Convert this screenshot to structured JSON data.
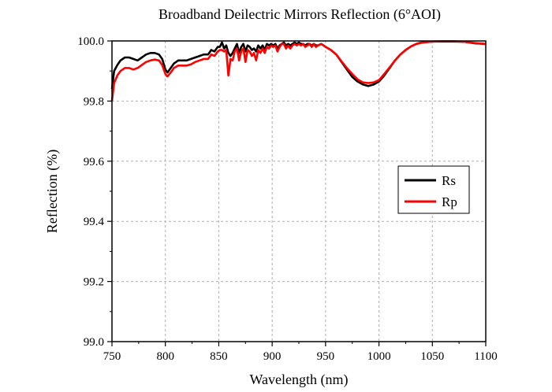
{
  "chart_data": {
    "type": "line",
    "title": "Broadband Deilectric Mirrors Reflection (6°AOI)",
    "xlabel": "Wavelength (nm)",
    "ylabel": "Reflection (%)",
    "xlim": [
      750,
      1100
    ],
    "ylim": [
      99.0,
      100.0
    ],
    "xticks": [
      750,
      800,
      850,
      900,
      950,
      1000,
      1050,
      1100
    ],
    "xtick_labels": [
      "750",
      "800",
      "850",
      "900",
      "950",
      "1000",
      "1050",
      "1100"
    ],
    "yticks": [
      99.0,
      99.2,
      99.4,
      99.6,
      99.8,
      100.0
    ],
    "ytick_labels": [
      "99.0",
      "99.2",
      "99.4",
      "99.6",
      "99.8",
      "100.0"
    ],
    "grid": true,
    "legend_position": "right",
    "series": [
      {
        "name": "Rs",
        "color": "#000000",
        "points": [
          [
            750,
            99.84
          ],
          [
            752,
            99.9
          ],
          [
            755,
            99.92
          ],
          [
            758,
            99.935
          ],
          [
            762,
            99.945
          ],
          [
            766,
            99.945
          ],
          [
            770,
            99.94
          ],
          [
            774,
            99.935
          ],
          [
            778,
            99.945
          ],
          [
            782,
            99.955
          ],
          [
            786,
            99.96
          ],
          [
            790,
            99.96
          ],
          [
            794,
            99.955
          ],
          [
            797,
            99.94
          ],
          [
            800,
            99.905
          ],
          [
            802,
            99.895
          ],
          [
            805,
            99.91
          ],
          [
            808,
            99.925
          ],
          [
            812,
            99.935
          ],
          [
            816,
            99.935
          ],
          [
            820,
            99.935
          ],
          [
            824,
            99.94
          ],
          [
            828,
            99.945
          ],
          [
            832,
            99.95
          ],
          [
            836,
            99.955
          ],
          [
            840,
            99.955
          ],
          [
            843,
            99.97
          ],
          [
            846,
            99.965
          ],
          [
            849,
            99.98
          ],
          [
            851,
            99.98
          ],
          [
            853,
            99.995
          ],
          [
            855,
            99.975
          ],
          [
            857,
            99.985
          ],
          [
            859,
            99.96
          ],
          [
            861,
            99.95
          ],
          [
            863,
            99.96
          ],
          [
            865,
            99.975
          ],
          [
            867,
            99.99
          ],
          [
            869,
            99.96
          ],
          [
            871,
            99.98
          ],
          [
            873,
            99.99
          ],
          [
            875,
            99.965
          ],
          [
            877,
            99.985
          ],
          [
            879,
            99.98
          ],
          [
            881,
            99.97
          ],
          [
            883,
            99.975
          ],
          [
            885,
            99.965
          ],
          [
            887,
            99.985
          ],
          [
            889,
            99.975
          ],
          [
            891,
            99.985
          ],
          [
            893,
            99.97
          ],
          [
            895,
            99.99
          ],
          [
            897,
            99.985
          ],
          [
            899,
            99.99
          ],
          [
            901,
            99.985
          ],
          [
            903,
            99.99
          ],
          [
            905,
            99.975
          ],
          [
            907,
            99.985
          ],
          [
            909,
            99.99
          ],
          [
            911,
            99.995
          ],
          [
            913,
            99.985
          ],
          [
            915,
            99.99
          ],
          [
            917,
            99.985
          ],
          [
            919,
            99.99
          ],
          [
            921,
            99.995
          ],
          [
            923,
            99.99
          ],
          [
            925,
            99.995
          ],
          [
            927,
            99.99
          ],
          [
            929,
            99.99
          ],
          [
            931,
            99.985
          ],
          [
            933,
            99.99
          ],
          [
            935,
            99.99
          ],
          [
            937,
            99.985
          ],
          [
            939,
            99.99
          ],
          [
            941,
            99.985
          ],
          [
            943,
            99.985
          ],
          [
            946,
            99.99
          ],
          [
            950,
            99.98
          ],
          [
            955,
            99.97
          ],
          [
            960,
            99.955
          ],
          [
            965,
            99.93
          ],
          [
            970,
            99.905
          ],
          [
            975,
            99.88
          ],
          [
            980,
            99.865
          ],
          [
            985,
            99.855
          ],
          [
            990,
            99.85
          ],
          [
            995,
            99.855
          ],
          [
            1000,
            99.865
          ],
          [
            1005,
            99.885
          ],
          [
            1010,
            99.91
          ],
          [
            1015,
            99.935
          ],
          [
            1020,
            99.955
          ],
          [
            1025,
            99.97
          ],
          [
            1030,
            99.982
          ],
          [
            1035,
            99.99
          ],
          [
            1040,
            99.995
          ],
          [
            1050,
            99.998
          ],
          [
            1060,
            99.998
          ],
          [
            1070,
            99.998
          ],
          [
            1080,
            99.997
          ],
          [
            1090,
            99.992
          ],
          [
            1100,
            99.99
          ]
        ]
      },
      {
        "name": "Rp",
        "color": "#ff0000",
        "points": [
          [
            750,
            99.8
          ],
          [
            752,
            99.86
          ],
          [
            755,
            99.885
          ],
          [
            758,
            99.9
          ],
          [
            762,
            99.91
          ],
          [
            766,
            99.91
          ],
          [
            770,
            99.905
          ],
          [
            774,
            99.91
          ],
          [
            778,
            99.92
          ],
          [
            782,
            99.93
          ],
          [
            786,
            99.935
          ],
          [
            790,
            99.938
          ],
          [
            794,
            99.935
          ],
          [
            797,
            99.92
          ],
          [
            800,
            99.89
          ],
          [
            802,
            99.882
          ],
          [
            805,
            99.895
          ],
          [
            808,
            99.91
          ],
          [
            812,
            99.918
          ],
          [
            816,
            99.918
          ],
          [
            820,
            99.918
          ],
          [
            824,
            99.922
          ],
          [
            828,
            99.93
          ],
          [
            832,
            99.935
          ],
          [
            836,
            99.94
          ],
          [
            840,
            99.94
          ],
          [
            843,
            99.955
          ],
          [
            846,
            99.95
          ],
          [
            849,
            99.965
          ],
          [
            851,
            99.97
          ],
          [
            853,
            99.97
          ],
          [
            855,
            99.965
          ],
          [
            857,
            99.97
          ],
          [
            859,
            99.885
          ],
          [
            861,
            99.94
          ],
          [
            863,
            99.935
          ],
          [
            865,
            99.965
          ],
          [
            867,
            99.975
          ],
          [
            869,
            99.935
          ],
          [
            871,
            99.965
          ],
          [
            873,
            99.975
          ],
          [
            875,
            99.93
          ],
          [
            877,
            99.97
          ],
          [
            879,
            99.965
          ],
          [
            881,
            99.95
          ],
          [
            883,
            99.96
          ],
          [
            885,
            99.935
          ],
          [
            887,
            99.97
          ],
          [
            889,
            99.96
          ],
          [
            891,
            99.975
          ],
          [
            893,
            99.96
          ],
          [
            895,
            99.98
          ],
          [
            897,
            99.975
          ],
          [
            899,
            99.985
          ],
          [
            901,
            99.98
          ],
          [
            903,
            99.985
          ],
          [
            905,
            99.965
          ],
          [
            907,
            99.98
          ],
          [
            909,
            99.99
          ],
          [
            911,
            99.99
          ],
          [
            913,
            99.975
          ],
          [
            915,
            99.985
          ],
          [
            917,
            99.975
          ],
          [
            919,
            99.985
          ],
          [
            921,
            99.99
          ],
          [
            923,
            99.985
          ],
          [
            925,
            99.99
          ],
          [
            927,
            99.985
          ],
          [
            929,
            99.99
          ],
          [
            931,
            99.98
          ],
          [
            933,
            99.985
          ],
          [
            935,
            99.99
          ],
          [
            937,
            99.98
          ],
          [
            939,
            99.99
          ],
          [
            941,
            99.98
          ],
          [
            943,
            99.985
          ],
          [
            946,
            99.99
          ],
          [
            950,
            99.98
          ],
          [
            955,
            99.97
          ],
          [
            960,
            99.955
          ],
          [
            965,
            99.932
          ],
          [
            970,
            99.91
          ],
          [
            975,
            99.89
          ],
          [
            980,
            99.872
          ],
          [
            985,
            99.862
          ],
          [
            990,
            99.86
          ],
          [
            995,
            99.862
          ],
          [
            1000,
            99.87
          ],
          [
            1005,
            99.89
          ],
          [
            1010,
            99.912
          ],
          [
            1015,
            99.935
          ],
          [
            1020,
            99.955
          ],
          [
            1025,
            99.97
          ],
          [
            1030,
            99.982
          ],
          [
            1035,
            99.99
          ],
          [
            1040,
            99.994
          ],
          [
            1050,
            99.998
          ],
          [
            1060,
            99.999
          ],
          [
            1070,
            99.999
          ],
          [
            1080,
            99.997
          ],
          [
            1090,
            99.993
          ],
          [
            1100,
            99.99
          ]
        ]
      }
    ]
  }
}
